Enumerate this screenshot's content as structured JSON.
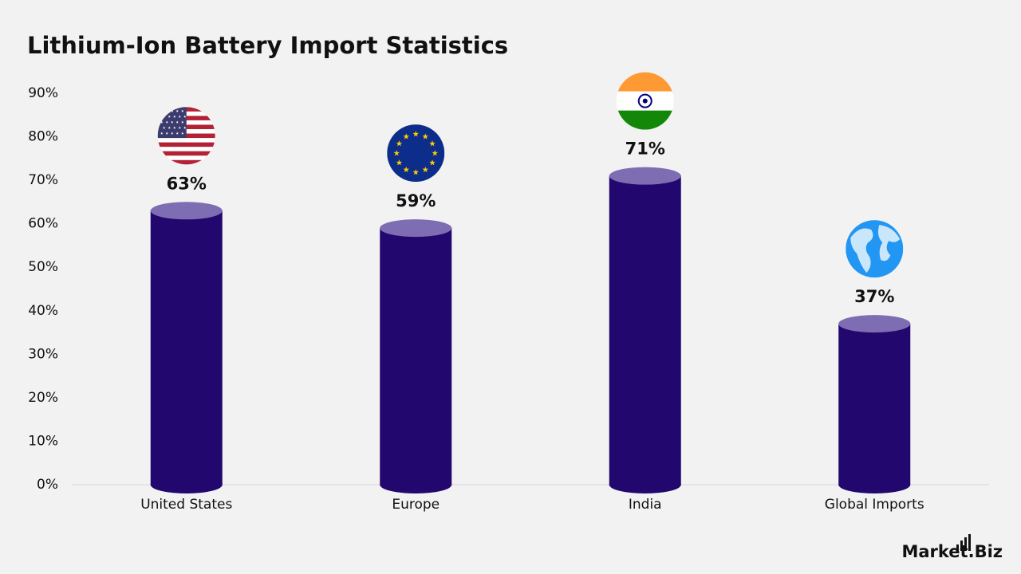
{
  "chart_data": {
    "type": "bar",
    "title": "Lithium-Ion Battery Import Statistics",
    "categories": [
      "United States",
      "Europe",
      "India",
      "Global Imports"
    ],
    "values": [
      63,
      59,
      71,
      37
    ],
    "value_labels": [
      "63%",
      "59%",
      "71%",
      "37%"
    ],
    "color": "#22076e",
    "ylim": [
      0,
      90
    ],
    "yticks": [
      {
        "value": 0,
        "label": "0%"
      },
      {
        "value": 10,
        "label": "10%"
      },
      {
        "value": 20,
        "label": "20%"
      },
      {
        "value": 30,
        "label": "30%"
      },
      {
        "value": 40,
        "label": "40%"
      },
      {
        "value": 50,
        "label": "50%"
      },
      {
        "value": 60,
        "label": "60%"
      },
      {
        "value": 70,
        "label": "70%"
      },
      {
        "value": 80,
        "label": "80%"
      },
      {
        "value": 90,
        "label": "90%"
      }
    ],
    "grid": false
  },
  "logo": "Market.Biz"
}
